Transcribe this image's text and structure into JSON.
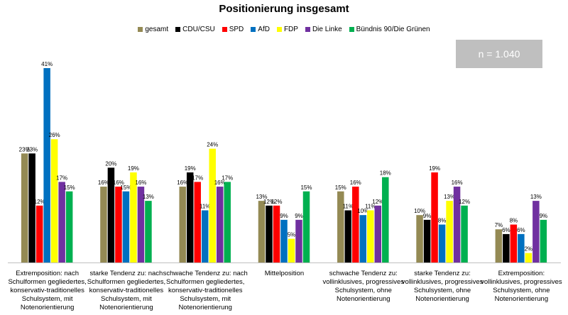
{
  "chart_data": {
    "type": "bar",
    "title": "Positionierung insgesamt",
    "annotation": "n = 1.040",
    "ylim": [
      0,
      45
    ],
    "legend_position": "top",
    "grid": false,
    "categories": [
      [
        "Extremposition: nach",
        "Schulformen gegliedertes,",
        "konservativ-traditionelles",
        "Schulsystem, mit",
        "Notenorientierung"
      ],
      [
        "starke Tendenz zu: nach",
        "Schulformen gegliedertes,",
        "konservativ-traditionelles",
        "Schulsystem, mit",
        "Notenorientierung"
      ],
      [
        "schwache Tendenz zu: nach",
        "Schulformen gegliedertes,",
        "konservativ-traditionelles",
        "Schulsystem, mit",
        "Notenorientierung"
      ],
      [
        "Mittelposition"
      ],
      [
        "schwache Tendenz zu:",
        "vollinklusives, progressives",
        "Schulsystem, ohne",
        "Notenorientierung"
      ],
      [
        "starke Tendenz zu:",
        "vollinklusives, progressives",
        "Schulsystem, ohne",
        "Notenorientierung"
      ],
      [
        "Extremposition:",
        "vollinklusives, progressives",
        "Schulsystem, ohne",
        "Notenorientierung"
      ]
    ],
    "series": [
      {
        "name": "gesamt",
        "color": "#948a54",
        "values": [
          23,
          16,
          16,
          13,
          15,
          10,
          7
        ]
      },
      {
        "name": "CDU/CSU",
        "color": "#000000",
        "values": [
          23,
          20,
          19,
          12,
          11,
          9,
          6
        ]
      },
      {
        "name": "SPD",
        "color": "#ff0000",
        "values": [
          12,
          16,
          17,
          12,
          16,
          19,
          8
        ]
      },
      {
        "name": "AfD",
        "color": "#0070c0",
        "values": [
          41,
          15,
          11,
          9,
          10,
          8,
          6
        ]
      },
      {
        "name": "FDP",
        "color": "#ffff00",
        "values": [
          26,
          19,
          24,
          5,
          11,
          13,
          2
        ]
      },
      {
        "name": "Die Linke",
        "color": "#7030a0",
        "values": [
          17,
          16,
          16,
          9,
          12,
          16,
          13
        ]
      },
      {
        "name": "Bündnis 90/Die Grünen",
        "color": "#00b050",
        "values": [
          15,
          13,
          17,
          15,
          18,
          12,
          9
        ]
      }
    ],
    "value_suffix": "%"
  }
}
